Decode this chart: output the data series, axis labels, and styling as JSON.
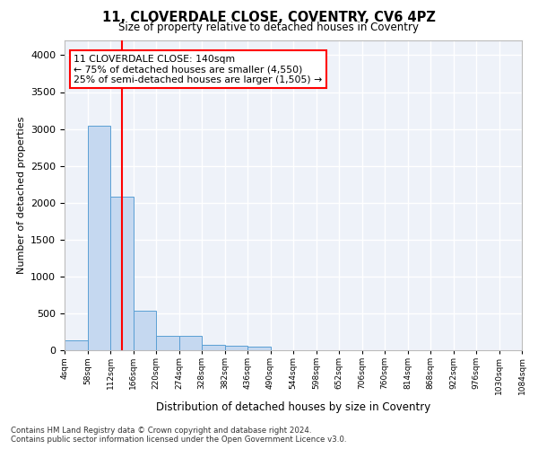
{
  "title_line1": "11, CLOVERDALE CLOSE, COVENTRY, CV6 4PZ",
  "title_line2": "Size of property relative to detached houses in Coventry",
  "xlabel": "Distribution of detached houses by size in Coventry",
  "ylabel": "Number of detached properties",
  "bin_labels": [
    "4sqm",
    "58sqm",
    "112sqm",
    "166sqm",
    "220sqm",
    "274sqm",
    "328sqm",
    "382sqm",
    "436sqm",
    "490sqm",
    "544sqm",
    "598sqm",
    "652sqm",
    "706sqm",
    "760sqm",
    "814sqm",
    "868sqm",
    "922sqm",
    "976sqm",
    "1030sqm",
    "1084sqm"
  ],
  "bin_edges": [
    4,
    58,
    112,
    166,
    220,
    274,
    328,
    382,
    436,
    490,
    544,
    598,
    652,
    706,
    760,
    814,
    868,
    922,
    976,
    1030,
    1084
  ],
  "bar_heights": [
    130,
    3040,
    2080,
    540,
    195,
    195,
    70,
    55,
    45,
    0,
    0,
    0,
    0,
    0,
    0,
    0,
    0,
    0,
    0,
    0
  ],
  "bar_color": "#c5d8f0",
  "bar_edge_color": "#5a9fd4",
  "red_line_x": 140,
  "annotation_text": "11 CLOVERDALE CLOSE: 140sqm\n← 75% of detached houses are smaller (4,550)\n25% of semi-detached houses are larger (1,505) →",
  "annotation_box_color": "white",
  "annotation_box_edge": "red",
  "ylim": [
    0,
    4200
  ],
  "yticks": [
    0,
    500,
    1000,
    1500,
    2000,
    2500,
    3000,
    3500,
    4000
  ],
  "footer_line1": "Contains HM Land Registry data © Crown copyright and database right 2024.",
  "footer_line2": "Contains public sector information licensed under the Open Government Licence v3.0.",
  "background_color": "#eef2f9",
  "grid_color": "#ffffff",
  "fig_bg_color": "#ffffff"
}
